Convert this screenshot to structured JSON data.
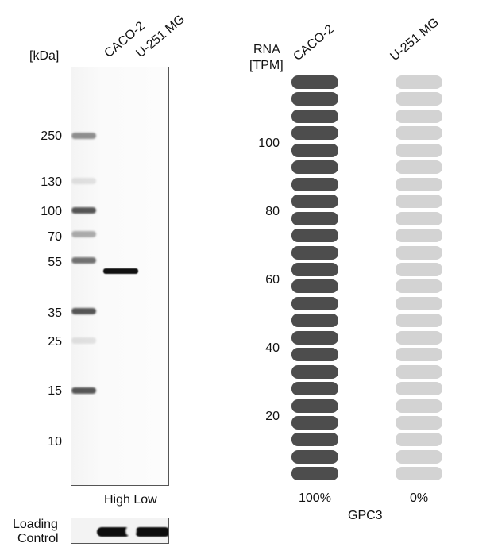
{
  "western_blot": {
    "unit_label": "[kDa]",
    "lanes": [
      "CACO-2",
      "U-251 MG"
    ],
    "markers": [
      "250",
      "130",
      "100",
      "70",
      "55",
      "35",
      "25",
      "15",
      "10"
    ],
    "high_low_label": "High Low",
    "loading_control_line1": "Loading",
    "loading_control_line2": "Control"
  },
  "rna": {
    "axis_label_line1": "RNA",
    "axis_label_line2": "[TPM]",
    "cell_lines": [
      "CACO-2",
      "U-251 MG"
    ],
    "ticks": [
      "100",
      "80",
      "60",
      "40",
      "20"
    ],
    "percent": [
      "100%",
      "0%"
    ],
    "percent_values": [
      1.0,
      0.0
    ],
    "gene": "GPC3",
    "colors": {
      "filled": "#4d4d4d",
      "empty": "#d3d3d3"
    },
    "segments": 24
  }
}
